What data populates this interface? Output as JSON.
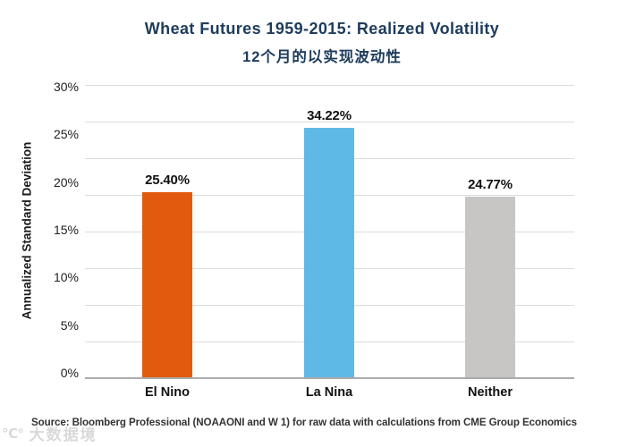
{
  "page": {
    "background": "#ffffff"
  },
  "chart_data": {
    "type": "bar",
    "title": "Wheat Futures 1959-2015: Realized Volatility",
    "subtitle_zh": "12个月的以实现波动性",
    "ylabel": "Annualized Standard Deviation",
    "xlabel": "",
    "categories": [
      "El Nino",
      "La Nina",
      "Neither"
    ],
    "values": [
      25.4,
      34.22,
      24.77
    ],
    "data_labels": [
      "25.40%",
      "34.22%",
      "24.77%"
    ],
    "bar_rendered_heights_pct": [
      19.0,
      25.6,
      18.6
    ],
    "bar_colors": [
      "#E25A0E",
      "#5EB9E7",
      "#C7C6C4"
    ],
    "ytick_labels": [
      "30%",
      "25%",
      "20%",
      "15%",
      "10%",
      "5%",
      "0%"
    ],
    "ylim": [
      0,
      30
    ],
    "grid": "horizontal",
    "legend": "none"
  },
  "colors": {
    "title_navy": "#1E3C5C",
    "gridline": "#DDDBDA",
    "axis_line": "#ABABAB",
    "text": "#1A1A1A"
  },
  "source": {
    "text": "Source: Bloomberg Professional (NOAAONI and W 1) for raw data with calculations from CME Group Economics"
  },
  "watermark": {
    "icon": "℃°",
    "text": "大数据境"
  }
}
